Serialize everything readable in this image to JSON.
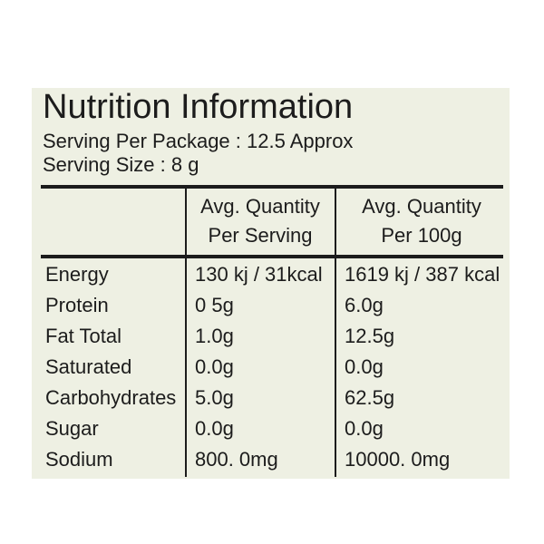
{
  "header": {
    "title": "Nutrition Information",
    "serving_per_package": "Serving Per Package : 12.5 Approx",
    "serving_size": "Serving Size : 8 g"
  },
  "table": {
    "columns": [
      [
        "Avg. Quantity",
        "Per Serving"
      ],
      [
        "Avg. Quantity",
        "Per 100g"
      ]
    ],
    "rows": [
      [
        "Energy",
        "130 kj / 31kcal",
        "1619 kj / 387 kcal"
      ],
      [
        "Protein",
        "0 5g",
        "6.0g"
      ],
      [
        "Fat Total",
        "1.0g",
        "12.5g"
      ],
      [
        "Saturated",
        "0.0g",
        "0.0g"
      ],
      [
        "Carbohydrates",
        "5.0g",
        "62.5g"
      ],
      [
        "Sugar",
        "0.0g",
        "0.0g"
      ],
      [
        "Sodium",
        "800. 0mg",
        "10000. 0mg"
      ]
    ]
  }
}
